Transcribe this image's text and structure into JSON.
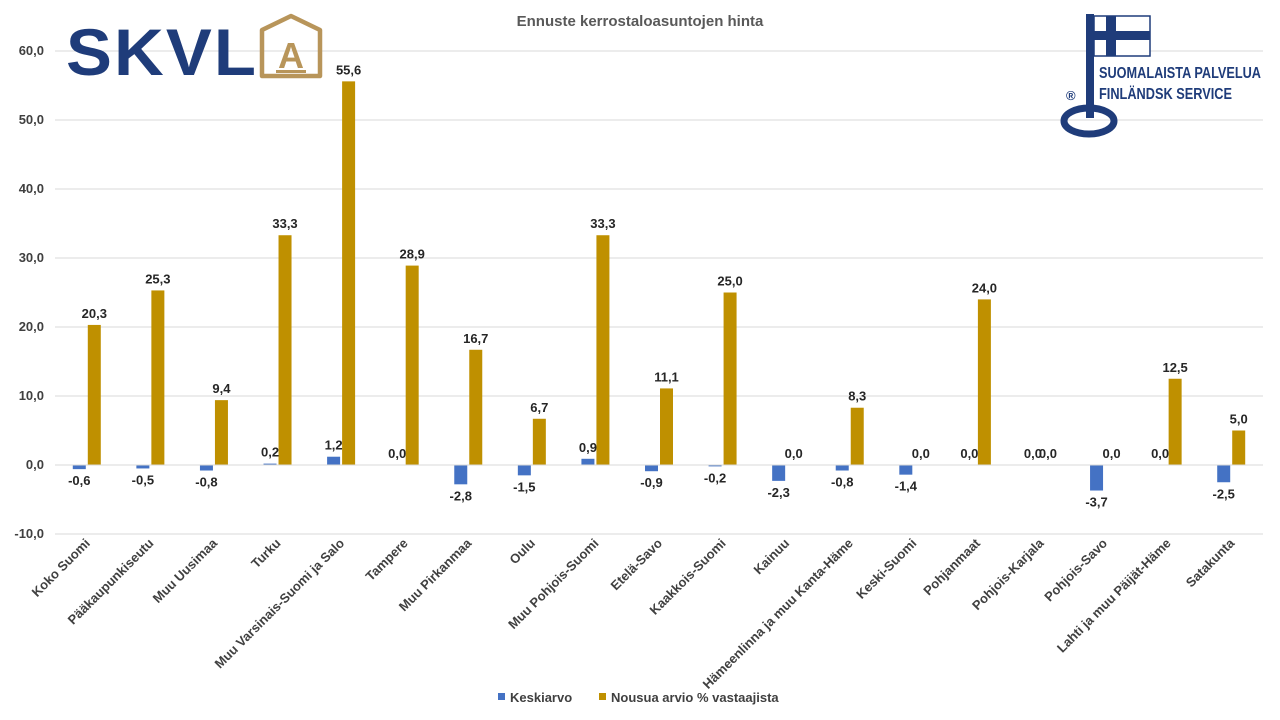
{
  "logos": {
    "left_text": "SKVL",
    "left_badge_letter": "A",
    "right_line1": "SUOMALAISTA PALVELUA",
    "right_line2": "FINLÄNDSK SERVICE",
    "right_mark": "®"
  },
  "colors": {
    "series1": "#4472c4",
    "series2": "#bf9000",
    "logo_blue": "#1f3c7a",
    "logo_gold": "#b8955a",
    "grid": "#d9d9d9"
  },
  "chart_data": {
    "type": "bar",
    "title": "Ennuste kerrostaloasuntojen hinta",
    "xlabel": "",
    "ylabel": "",
    "ylim": [
      -10,
      60
    ],
    "y_ticks": [
      "-10,0",
      "0,0",
      "10,0",
      "20,0",
      "30,0",
      "40,0",
      "50,0",
      "60,0"
    ],
    "grid": true,
    "legend_position": "bottom",
    "categories": [
      "Koko Suomi",
      "Pääkaupunkiseutu",
      "Muu Uusimaa",
      "Turku",
      "Muu Varsinais-Suomi ja Salo",
      "Tampere",
      "Muu Pirkanmaa",
      "Oulu",
      "Muu Pohjois-Suomi",
      "Etelä-Savo",
      "Kaakkois-Suomi",
      "Kainuu",
      "Hämeenlinna ja muu Kanta-Häme",
      "Keski-Suomi",
      "Pohjanmaat",
      "Pohjois-Karjala",
      "Pohjois-Savo",
      "Lahti ja muu Päijät-Häme",
      "Satakunta"
    ],
    "series": [
      {
        "name": "Keskiarvo",
        "values": [
          -0.6,
          -0.5,
          -0.8,
          0.2,
          1.2,
          0.0,
          -2.8,
          -1.5,
          0.9,
          -0.9,
          -0.2,
          -2.3,
          -0.8,
          -1.4,
          0.0,
          0.0,
          -3.7,
          0.0,
          -2.5
        ],
        "labels": [
          "-0,6",
          "-0,5",
          "-0,8",
          "0,2",
          "1,2",
          "0,0",
          "-2,8",
          "-1,5",
          "0,9",
          "-0,9",
          "-0,2",
          "-2,3",
          "-0,8",
          "-1,4",
          "0,0",
          "0,0",
          "-3,7",
          "0,0",
          "-2,5"
        ]
      },
      {
        "name": "Nousua arvio % vastaajista",
        "values": [
          20.3,
          25.3,
          9.4,
          33.3,
          55.6,
          28.9,
          16.7,
          6.7,
          33.3,
          11.1,
          25.0,
          0.0,
          8.3,
          0.0,
          24.0,
          0.0,
          0.0,
          12.5,
          5.0
        ],
        "labels": [
          "20,3",
          "25,3",
          "9,4",
          "33,3",
          "55,6",
          "28,9",
          "16,7",
          "6,7",
          "33,3",
          "11,1",
          "25,0",
          "0,0",
          "8,3",
          "0,0",
          "24,0",
          "0,0",
          "0,0",
          "12,5",
          "5,0"
        ]
      }
    ]
  }
}
